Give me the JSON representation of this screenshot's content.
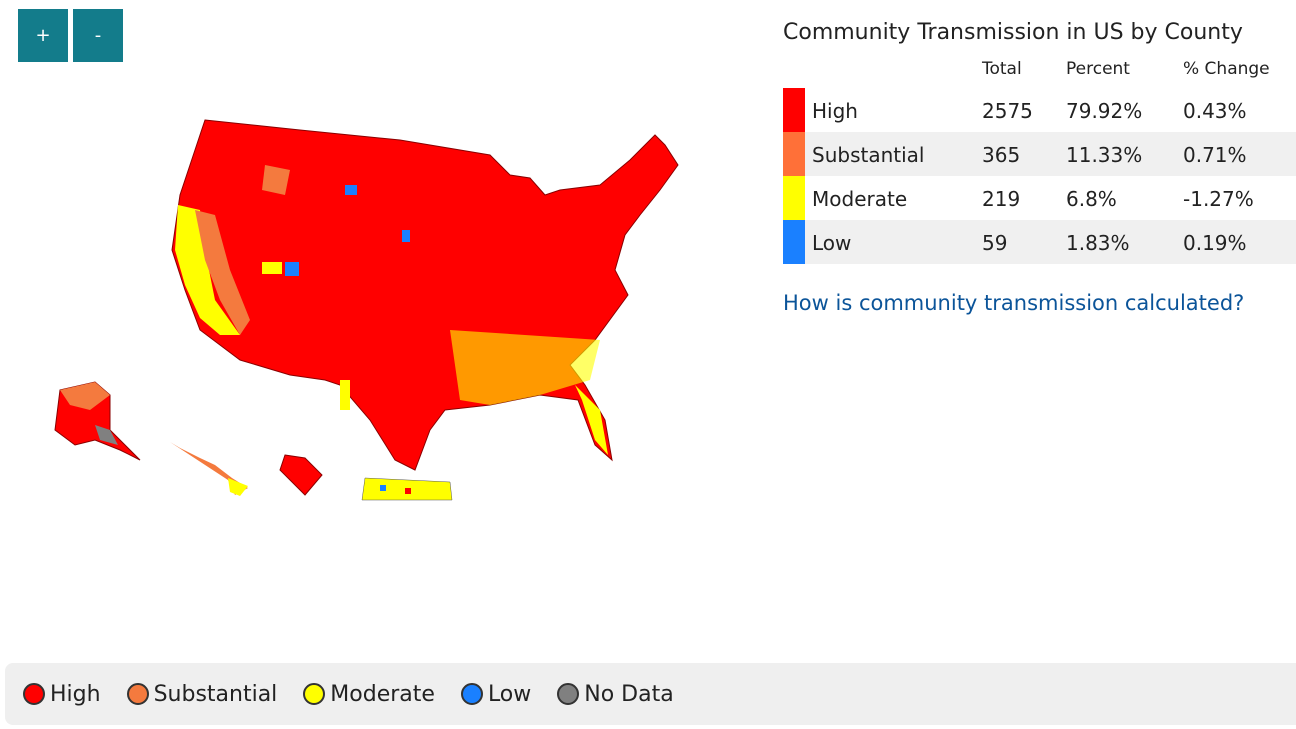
{
  "zoom_buttons": [
    "+",
    "-"
  ],
  "table": {
    "title": "Community Transmission in US by County",
    "headers": [
      "Total",
      "Percent",
      "% Change"
    ],
    "rows": [
      {
        "label": "High",
        "color": "#ff0000",
        "total": "2575",
        "percent": "79.92%",
        "change": "0.43%"
      },
      {
        "label": "Substantial",
        "color": "#ff7038",
        "total": "365",
        "percent": "11.33%",
        "change": "0.71%"
      },
      {
        "label": "Moderate",
        "color": "#ffff00",
        "total": "219",
        "percent": "6.8%",
        "change": "-1.27%"
      },
      {
        "label": "Low",
        "color": "#1a80ff",
        "total": "59",
        "percent": "1.83%",
        "change": "0.19%"
      }
    ]
  },
  "link": "How is community transmission calculated?",
  "legend": [
    {
      "label": "High",
      "color": "#ff0000"
    },
    {
      "label": "Substantial",
      "color": "#f47a3e"
    },
    {
      "label": "Moderate",
      "color": "#ffff00"
    },
    {
      "label": "Low",
      "color": "#1a80ff"
    },
    {
      "label": "No Data",
      "color": "#808080"
    }
  ]
}
